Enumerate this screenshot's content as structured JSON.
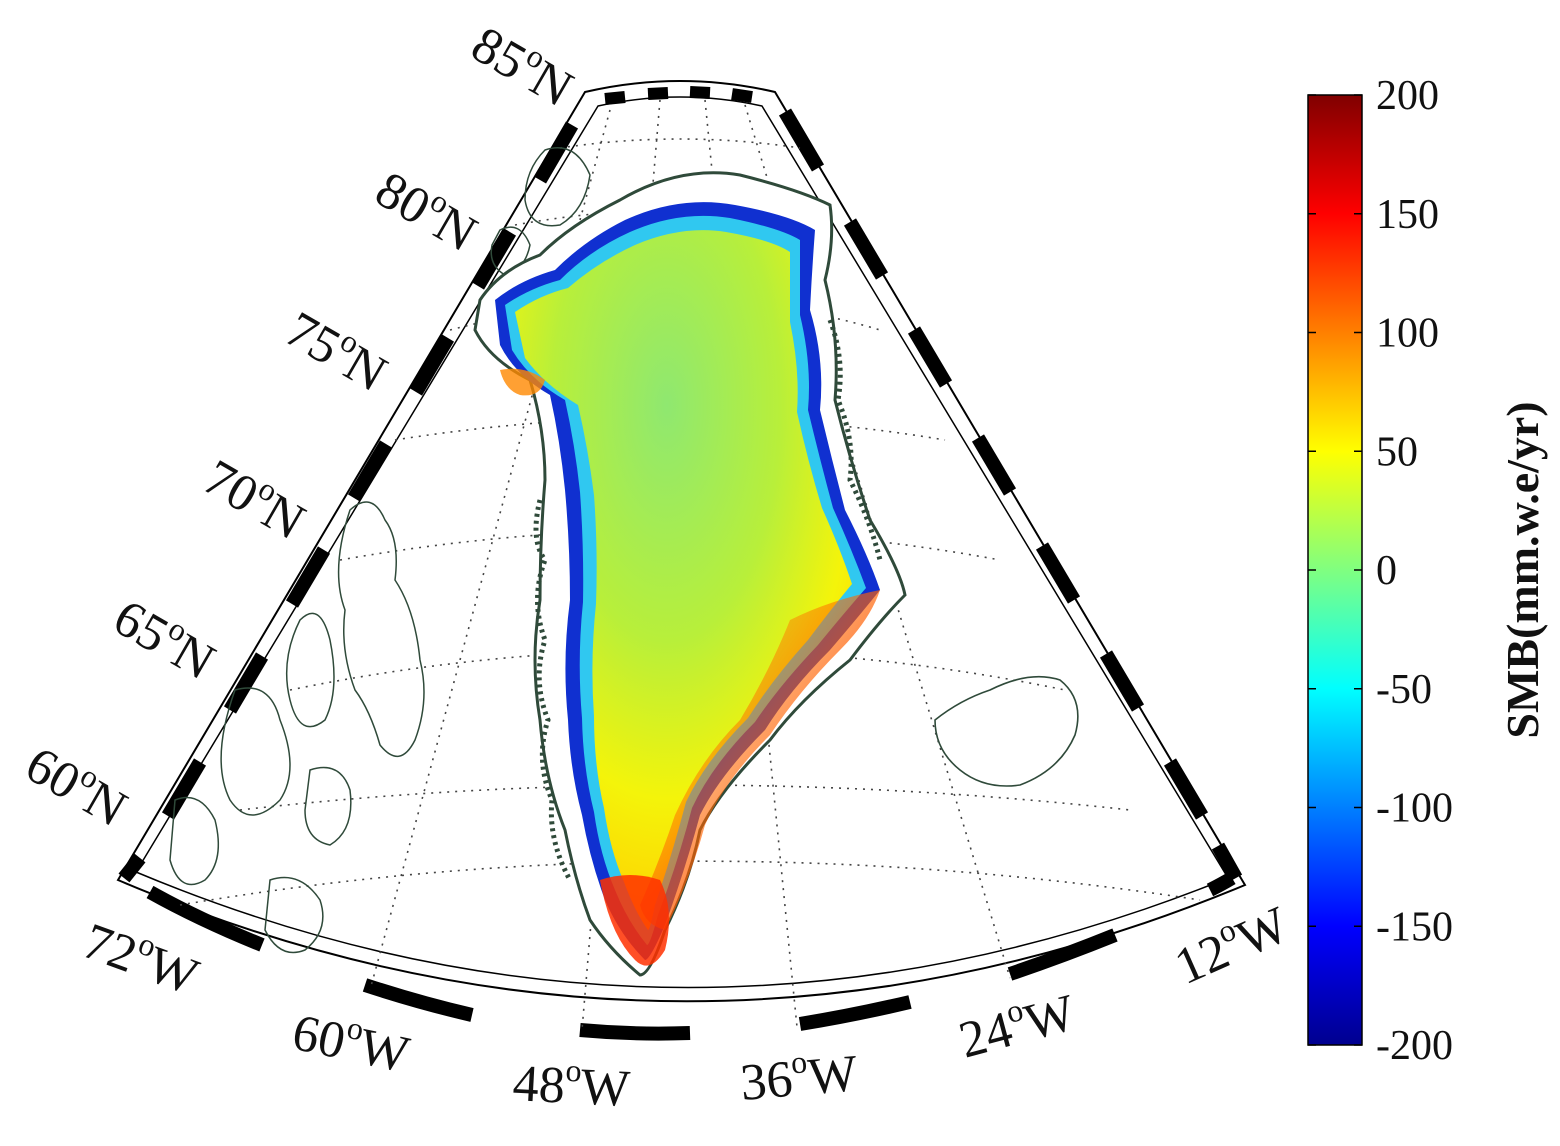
{
  "map": {
    "type": "polar stereographic map",
    "region": "Greenland",
    "latitude_labels": [
      "85°N",
      "80°N",
      "75°N",
      "70°N",
      "65°N",
      "60°N"
    ],
    "longitude_labels": [
      "72°W",
      "60°W",
      "48°W",
      "36°W",
      "24°W",
      "12°W"
    ],
    "lat_label_parts": [
      {
        "num": "85",
        "unit": "N"
      },
      {
        "num": "80",
        "unit": "N"
      },
      {
        "num": "75",
        "unit": "N"
      },
      {
        "num": "70",
        "unit": "N"
      },
      {
        "num": "65",
        "unit": "N"
      },
      {
        "num": "60",
        "unit": "N"
      }
    ],
    "lon_label_parts": [
      {
        "num": "72",
        "unit": "W"
      },
      {
        "num": "60",
        "unit": "W"
      },
      {
        "num": "48",
        "unit": "W"
      },
      {
        "num": "36",
        "unit": "W"
      },
      {
        "num": "24",
        "unit": "W"
      },
      {
        "num": "12",
        "unit": "W"
      }
    ],
    "degree_symbol": "o",
    "grid": "dotted",
    "frame": "black-white alternating"
  },
  "colorbar": {
    "title": "SMB(mm.w.e/yr)",
    "min": -200,
    "max": 200,
    "ticks": [
      "200",
      "150",
      "100",
      "50",
      "0",
      "-50",
      "-100",
      "-150",
      "-200"
    ],
    "colormap": "jet",
    "colors": [
      "#00008f",
      "#0000ff",
      "#0080ff",
      "#00ffff",
      "#80ff80",
      "#ffff00",
      "#ff8000",
      "#ff0000",
      "#800000"
    ]
  },
  "colors": {
    "coastline": "#2f4a3a",
    "grid": "#444444",
    "interior": "#8fe870",
    "margin_low": "#1030d0",
    "margin_high": "#e02000"
  }
}
